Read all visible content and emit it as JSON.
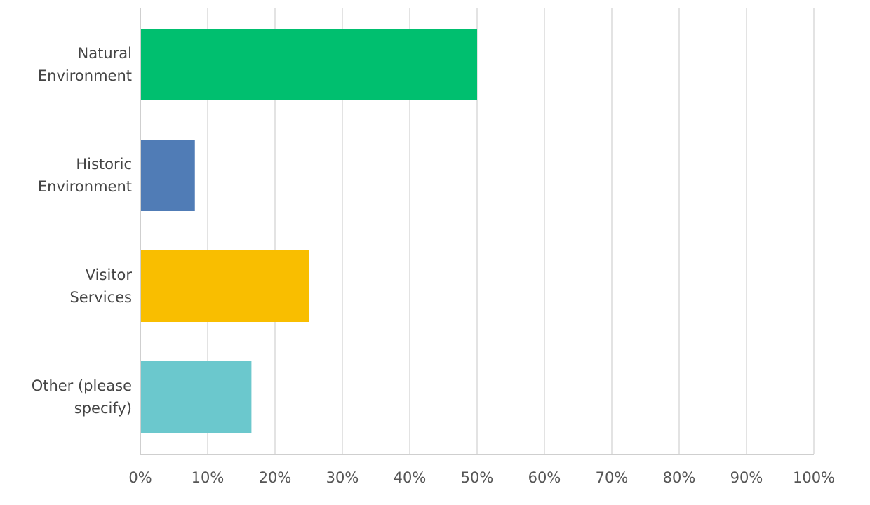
{
  "chart_data": {
    "type": "bar",
    "orientation": "horizontal",
    "categories": [
      [
        "Natural",
        "Environment"
      ],
      [
        "Historic",
        "Environment"
      ],
      [
        "Visitor",
        "Services"
      ],
      [
        "Other (please",
        "specify)"
      ]
    ],
    "values": [
      50,
      8.1,
      25,
      16.5
    ],
    "colors": [
      "#00bf6f",
      "#507cb6",
      "#f9be00",
      "#6bc8cd"
    ],
    "x_ticks": [
      "0%",
      "10%",
      "20%",
      "30%",
      "40%",
      "50%",
      "60%",
      "70%",
      "80%",
      "90%",
      "100%"
    ],
    "xlim": [
      0,
      100
    ],
    "grid": "vertical",
    "title": "",
    "xlabel": "",
    "ylabel": ""
  }
}
